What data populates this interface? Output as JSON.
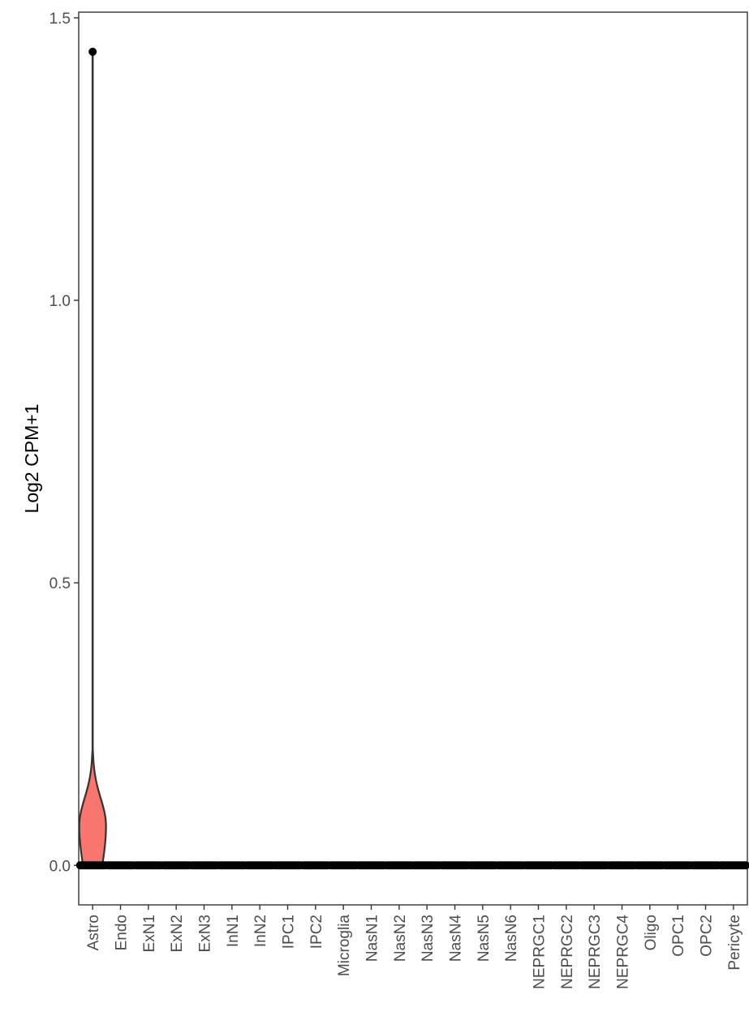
{
  "chart_data": {
    "type": "violin",
    "title": "",
    "xlabel": "",
    "ylabel": "Log2 CPM+1",
    "ylim": [
      -0.07,
      1.51
    ],
    "yticks": [
      0.0,
      0.5,
      1.0,
      1.5
    ],
    "ytick_labels": [
      "0.0",
      "0.5",
      "1.0",
      "1.5"
    ],
    "categories": [
      "Astro",
      "Endo",
      "ExN1",
      "ExN2",
      "ExN3",
      "InN1",
      "InN2",
      "IPC1",
      "IPC2",
      "Microglia",
      "NasN1",
      "NasN2",
      "NasN3",
      "NasN4",
      "NasN5",
      "NasN6",
      "NEPRGC1",
      "NEPRGC2",
      "NEPRGC3",
      "NEPRGC4",
      "Oligo",
      "OPC1",
      "OPC2",
      "Pericyte"
    ],
    "violin_color": "#F8766D",
    "point_color": "#000000",
    "violins": [
      {
        "category": "Astro",
        "max_density_at": 0.07,
        "upper_tail": 0.2,
        "max": 1.44
      }
    ],
    "outliers": [
      {
        "category": "Astro",
        "value": 1.44
      }
    ],
    "baseline_value": 0.0,
    "grid": false
  }
}
